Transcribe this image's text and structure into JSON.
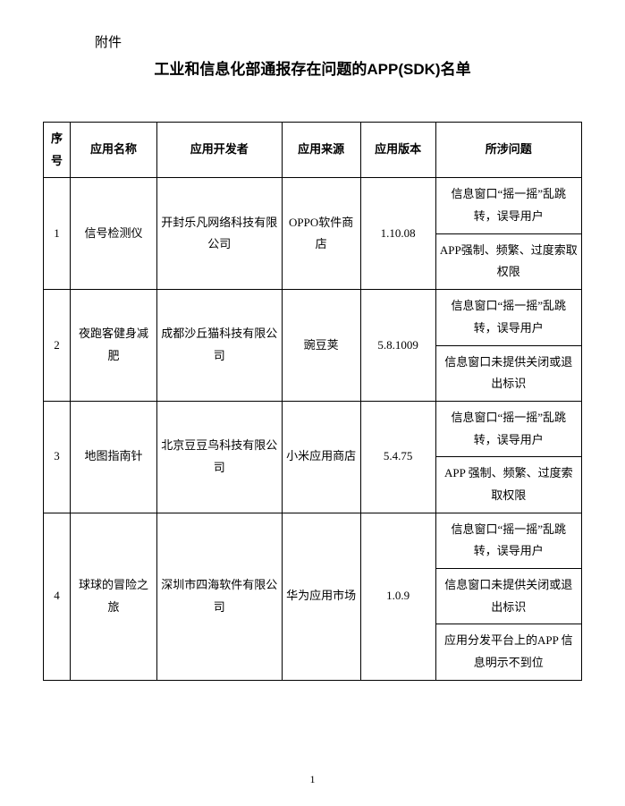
{
  "attachment_label": "附件",
  "title": "工业和信息化部通报存在问题的APP(SDK)名单",
  "columns": [
    "序号",
    "应用名称",
    "应用开发者",
    "应用来源",
    "应用版本",
    "所涉问题"
  ],
  "rows": [
    {
      "idx": "1",
      "name": "信号检测仪",
      "developer": "开封乐凡网络科技有限公司",
      "source": "OPPO软件商店",
      "version": "1.10.08",
      "issues": [
        "信息窗口“摇一摇”乱跳转，误导用户",
        "APP强制、频繁、过度索取权限"
      ]
    },
    {
      "idx": "2",
      "name": "夜跑客健身减肥",
      "developer": "成都沙丘猫科技有限公司",
      "source": "豌豆荚",
      "version": "5.8.1009",
      "issues": [
        "信息窗口“摇一摇”乱跳转，误导用户",
        "信息窗口未提供关闭或退出标识"
      ]
    },
    {
      "idx": "3",
      "name": "地图指南针",
      "developer": "北京豆豆鸟科技有限公司",
      "source": "小米应用商店",
      "version": "5.4.75",
      "issues": [
        "信息窗口“摇一摇”乱跳转，误导用户",
        "APP 强制、频繁、过度索取权限"
      ]
    },
    {
      "idx": "4",
      "name": "球球的冒险之旅",
      "developer": "深圳市四海软件有限公司",
      "source": "华为应用市场",
      "version": "1.0.9",
      "issues": [
        "信息窗口“摇一摇”乱跳转，误导用户",
        "信息窗口未提供关闭或退出标识",
        "应用分发平台上的APP 信息明示不到位"
      ]
    }
  ],
  "page_number": "1"
}
